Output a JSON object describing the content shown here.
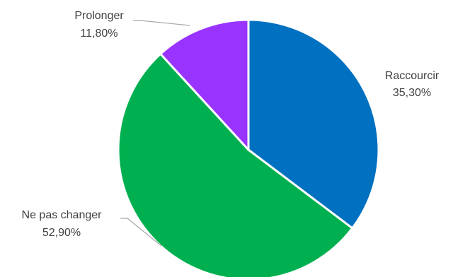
{
  "chart_data": {
    "type": "pie",
    "start_angle_deg": 0,
    "direction": "clockwise",
    "slices": [
      {
        "category": "Raccourcir",
        "value": 35.3,
        "label_value": "35,30%",
        "color": "#0070C0"
      },
      {
        "category": "Ne pas changer",
        "value": 52.9,
        "label_value": "52,90%",
        "color": "#00B050"
      },
      {
        "category": "Prolonger",
        "value": 11.8,
        "label_value": "11,80%",
        "color": "#9933FF"
      }
    ],
    "legend": "none",
    "data_labels": "category and percent, outside"
  }
}
